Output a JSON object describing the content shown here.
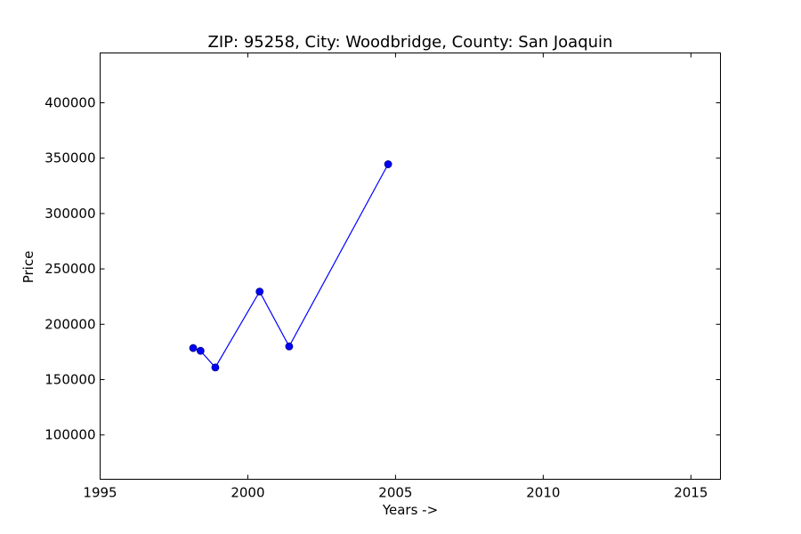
{
  "chart_data": {
    "type": "line",
    "title": "ZIP: 95258, City: Woodbridge, County: San Joaquin",
    "xlabel": "Years ->",
    "ylabel": "Price",
    "xlim": [
      1995,
      2016
    ],
    "ylim": [
      60000,
      445000
    ],
    "xticks": [
      1995,
      2000,
      2005,
      2010,
      2015
    ],
    "yticks": [
      100000,
      150000,
      200000,
      250000,
      300000,
      350000,
      400000
    ],
    "grid": false,
    "series": [
      {
        "color": "#0000ff",
        "x": [
          1998.15,
          1998.4,
          1998.9,
          2000.4,
          2001.4,
          2004.75
        ],
        "y": [
          178500,
          176000,
          161000,
          229500,
          180000,
          344500
        ]
      }
    ]
  }
}
